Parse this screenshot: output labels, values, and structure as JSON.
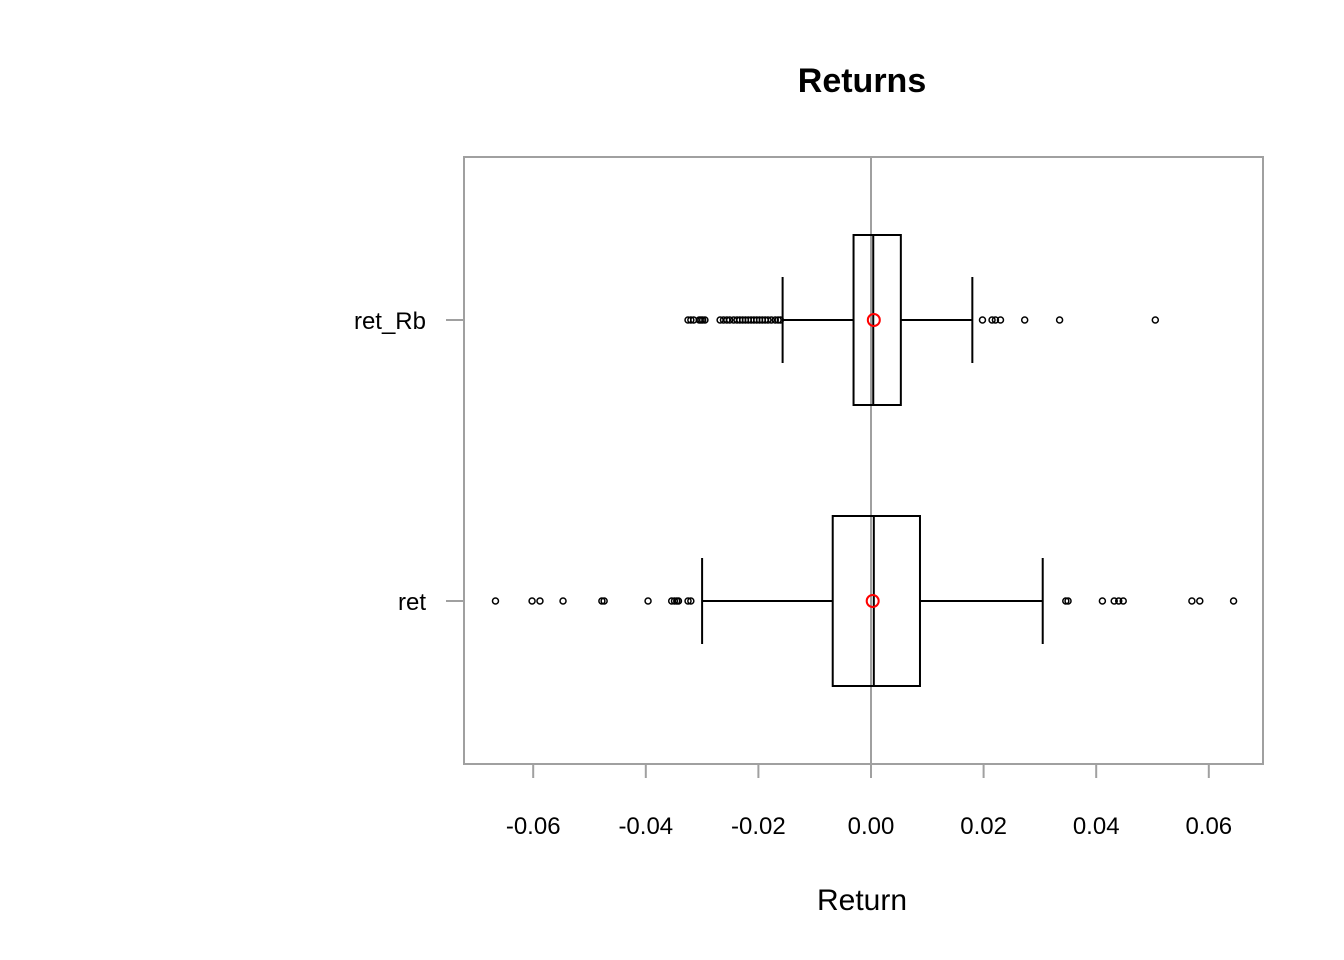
{
  "chart_data": {
    "type": "boxplot",
    "orientation": "horizontal",
    "title": "Returns",
    "xlabel": "Return",
    "ylabel": "",
    "xlim": [
      -0.072,
      0.07
    ],
    "x_ticks": [
      -0.06,
      -0.04,
      -0.02,
      0.0,
      0.02,
      0.04,
      0.06
    ],
    "x_tick_labels": [
      "-0.06",
      "-0.04",
      "-0.02",
      "0.00",
      "0.02",
      "0.04",
      "0.06"
    ],
    "reference_line_x": 0.0,
    "grid": false,
    "colors": {
      "box": "#000000",
      "outlier": "#000000",
      "mean_marker": "#ff0000",
      "frame": "#a0a0a0",
      "reference_line": "#a0a0a0"
    },
    "series": [
      {
        "label": "ret",
        "whisker_low": -0.03,
        "q1": -0.0068,
        "median": 0.0005,
        "q3": 0.0087,
        "whisker_high": 0.0305,
        "mean": 0.0003,
        "outliers": [
          -0.0667,
          -0.0602,
          -0.0588,
          -0.0547,
          -0.0478,
          -0.0474,
          -0.0396,
          -0.0354,
          -0.0349,
          -0.0345,
          -0.0342,
          -0.0325,
          -0.032,
          0.0346,
          0.035,
          0.0411,
          0.0432,
          0.044,
          0.0448,
          0.057,
          0.0584,
          0.0644
        ]
      },
      {
        "label": "ret_Rb",
        "whisker_low": -0.0157,
        "q1": -0.0031,
        "median": 0.0004,
        "q3": 0.0053,
        "whisker_high": 0.018,
        "mean": 0.0005,
        "outliers": [
          -0.0325,
          -0.032,
          -0.0315,
          -0.0305,
          -0.0302,
          -0.0299,
          -0.0295,
          -0.0268,
          -0.0262,
          -0.0256,
          -0.0251,
          -0.0244,
          -0.0238,
          -0.0233,
          -0.0228,
          -0.0223,
          -0.0218,
          -0.0213,
          -0.0208,
          -0.0203,
          -0.0198,
          -0.0193,
          -0.0188,
          -0.0183,
          -0.0177,
          -0.017,
          -0.0165,
          -0.0161,
          0.0198,
          0.0215,
          0.0221,
          0.023,
          0.0273,
          0.0335,
          0.0505
        ]
      }
    ]
  }
}
